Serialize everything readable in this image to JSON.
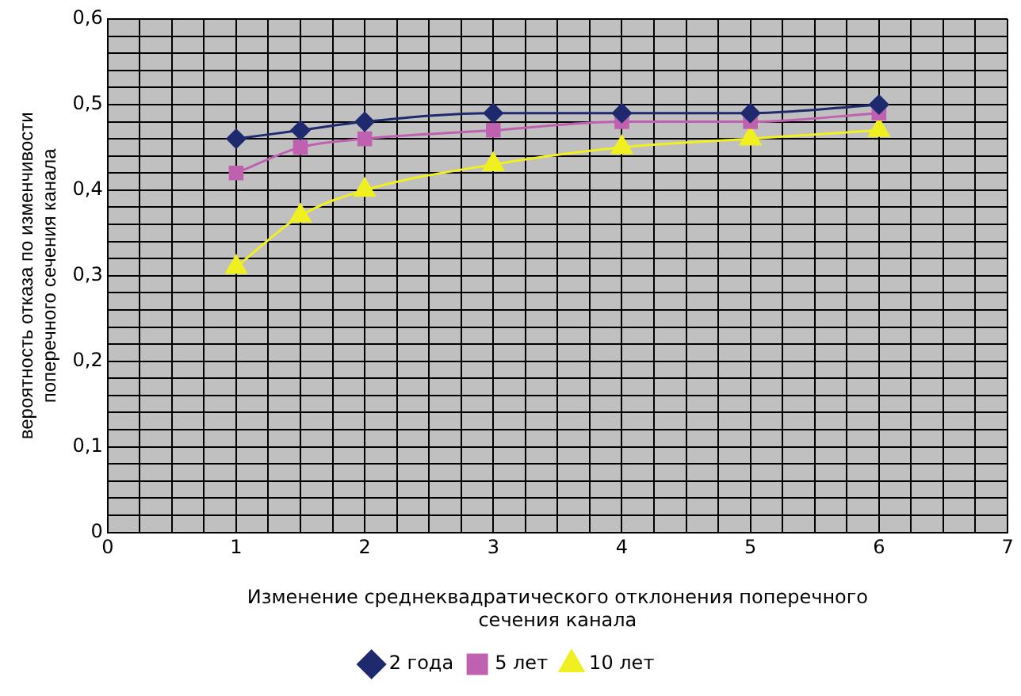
{
  "chart_data": {
    "type": "line",
    "xlabel": "Изменение среднеквадратического отклонения поперечного сечения канала",
    "ylabel": "вероятность отказа по изменчивости поперечного сечения канала",
    "x": [
      1,
      1.5,
      2,
      3,
      4,
      5,
      6
    ],
    "series": [
      {
        "name": "2 года",
        "color": "#1f2a6e",
        "marker": "diamond",
        "values": [
          0.46,
          0.47,
          0.48,
          0.49,
          0.49,
          0.49,
          0.5
        ]
      },
      {
        "name": "5 лет",
        "color": "#c060b0",
        "marker": "square",
        "values": [
          0.42,
          0.45,
          0.46,
          0.47,
          0.48,
          0.48,
          0.49
        ]
      },
      {
        "name": "10 лет",
        "color": "#f0f020",
        "marker": "triangle",
        "values": [
          0.31,
          0.37,
          0.4,
          0.43,
          0.45,
          0.46,
          0.47
        ]
      }
    ],
    "xlim": [
      0,
      7
    ],
    "xticks": [
      0,
      {
        "value": 0.25,
        "label": null
      },
      {
        "value": 0.5,
        "label": null
      },
      {
        "value": 0.75,
        "label": null
      },
      1,
      {
        "value": 1.25,
        "label": null
      },
      {
        "value": 1.5,
        "label": null
      },
      {
        "value": 1.75,
        "label": null
      },
      2,
      {
        "value": 2.25,
        "label": null
      },
      {
        "value": 2.5,
        "label": null
      },
      {
        "value": 2.75,
        "label": null
      },
      3,
      {
        "value": 3.25,
        "label": null
      },
      {
        "value": 3.5,
        "label": null
      },
      {
        "value": 3.75,
        "label": null
      },
      4,
      {
        "value": 4.25,
        "label": null
      },
      {
        "value": 4.5,
        "label": null
      },
      {
        "value": 4.75,
        "label": null
      },
      5,
      {
        "value": 5.25,
        "label": null
      },
      {
        "value": 5.5,
        "label": null
      },
      {
        "value": 5.75,
        "label": null
      },
      6,
      {
        "value": 6.25,
        "label": null
      },
      {
        "value": 6.5,
        "label": null
      },
      {
        "value": 6.75,
        "label": null
      },
      7
    ],
    "ylim": [
      0,
      0.6
    ],
    "yticks": [
      0,
      {
        "value": 0.02,
        "label": null
      },
      {
        "value": 0.04,
        "label": null
      },
      {
        "value": 0.06,
        "label": null
      },
      {
        "value": 0.08,
        "label": null
      },
      {
        "value": 0.1,
        "label": "0,1"
      },
      {
        "value": 0.12,
        "label": null
      },
      {
        "value": 0.14,
        "label": null
      },
      {
        "value": 0.16,
        "label": null
      },
      {
        "value": 0.18,
        "label": null
      },
      {
        "value": 0.2,
        "label": "0,2"
      },
      {
        "value": 0.22,
        "label": null
      },
      {
        "value": 0.24,
        "label": null
      },
      {
        "value": 0.26,
        "label": null
      },
      {
        "value": 0.28,
        "label": null
      },
      {
        "value": 0.3,
        "label": "0,3"
      },
      {
        "value": 0.32,
        "label": null
      },
      {
        "value": 0.34,
        "label": null
      },
      {
        "value": 0.36,
        "label": null
      },
      {
        "value": 0.38,
        "label": null
      },
      {
        "value": 0.4,
        "label": "0,4"
      },
      {
        "value": 0.42,
        "label": null
      },
      {
        "value": 0.44,
        "label": null
      },
      {
        "value": 0.46,
        "label": null
      },
      {
        "value": 0.48,
        "label": null
      },
      {
        "value": 0.5,
        "label": "0,5"
      },
      {
        "value": 0.52,
        "label": null
      },
      {
        "value": 0.54,
        "label": null
      },
      {
        "value": 0.56,
        "label": null
      },
      {
        "value": 0.58,
        "label": null
      },
      {
        "value": 0.6,
        "label": "0,6"
      }
    ],
    "grid": true,
    "legend": "bottom"
  }
}
